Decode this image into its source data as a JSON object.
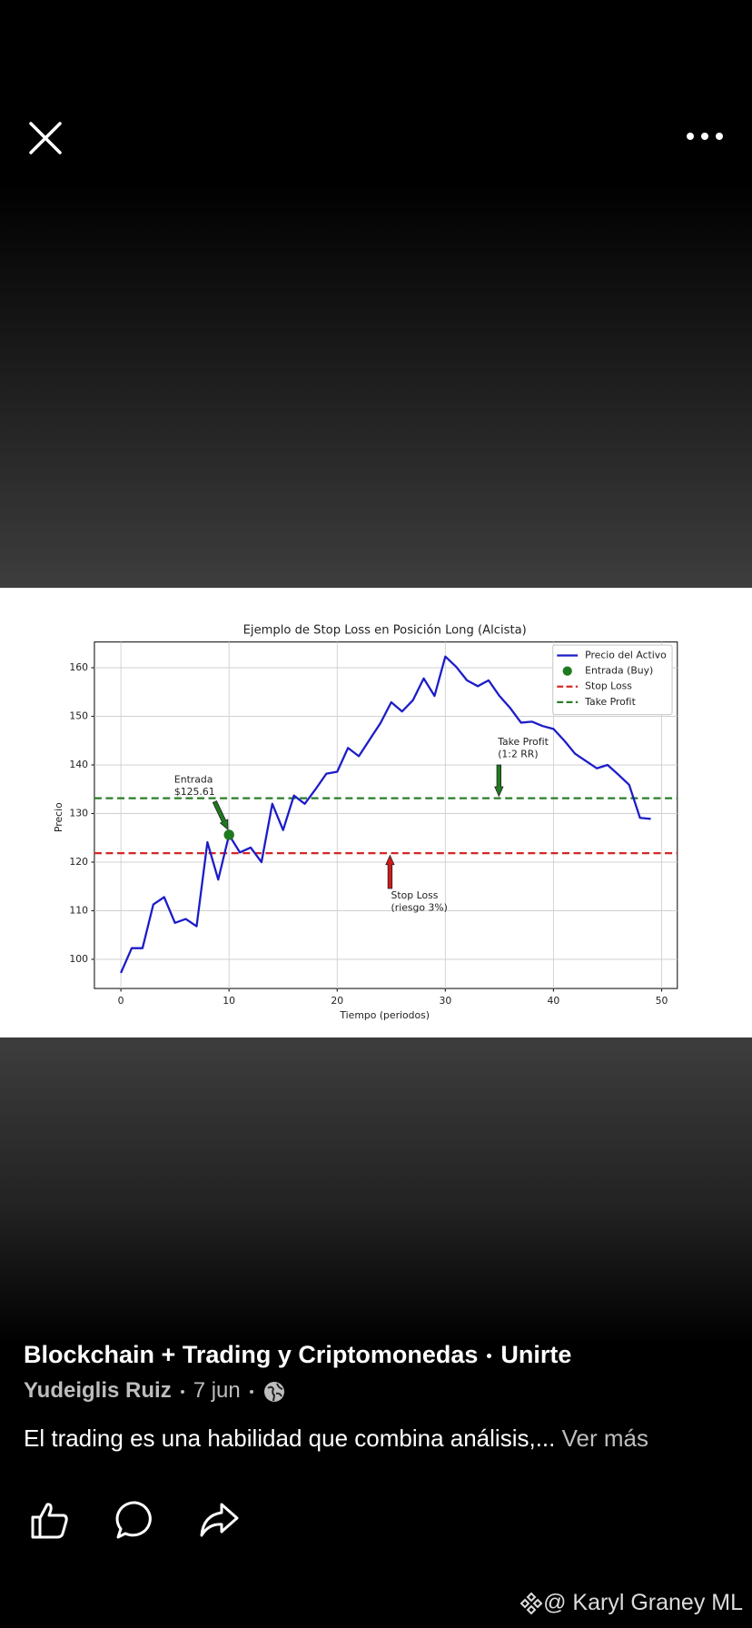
{
  "chart_data": {
    "type": "line",
    "title": "Ejemplo de Stop Loss en Posición Long (Alcista)",
    "x_label": "Tiempo (periodos)",
    "y_label": "Precio",
    "x": [
      0,
      1,
      2,
      3,
      4,
      5,
      6,
      7,
      8,
      9,
      10,
      11,
      12,
      13,
      14,
      15,
      16,
      17,
      18,
      19,
      20,
      21,
      22,
      23,
      24,
      25,
      26,
      27,
      28,
      29,
      30,
      31,
      32,
      33,
      34,
      35,
      36,
      37,
      38,
      39,
      40,
      41,
      42,
      43,
      44,
      45,
      46,
      47,
      48,
      49
    ],
    "series": [
      {
        "name": "Precio del Activo",
        "color": "#1c1cc8",
        "values": [
          97.2,
          102.3,
          102.3,
          111.3,
          112.8,
          107.5,
          108.3,
          106.8,
          124.1,
          116.4,
          125.61,
          122,
          123,
          120,
          132,
          126.6,
          133.7,
          132,
          135,
          138.2,
          138.6,
          143.5,
          141.8,
          145.2,
          148.6,
          152.9,
          151,
          153.3,
          157.8,
          154.2,
          162.3,
          160.2,
          157.4,
          156.2,
          157.4,
          154.2,
          151.7,
          148.7,
          148.9,
          148,
          147.4,
          145,
          142.3,
          140.8,
          139.3,
          140,
          138,
          135.9,
          129.1,
          128.9
        ]
      }
    ],
    "entry": {
      "name": "Entrada (Buy)",
      "color": "#1e7a1e",
      "x": 10,
      "y": 125.61
    },
    "hlines": [
      {
        "name": "Stop Loss",
        "color": "#d62728",
        "value": 121.84
      },
      {
        "name": "Take Profit",
        "color": "#2a7d2a",
        "value": 133.15
      }
    ],
    "annotations": [
      {
        "lines": [
          "Entrada",
          "$125.61"
        ],
        "color": "#222222",
        "arrow_color": "#1e7a1e"
      },
      {
        "lines": [
          "Stop Loss",
          "(riesgo 3%)"
        ],
        "color": "#d62728",
        "arrow_color": "#d11a1a"
      },
      {
        "lines": [
          "Take Profit",
          "(1:2 RR)"
        ],
        "color": "#2a7d2a",
        "arrow_color": "#1e7a1e"
      }
    ],
    "xlim": [
      -2.45,
      51.45
    ],
    "ylim": [
      94,
      165.3
    ],
    "xticks": [
      0,
      10,
      20,
      30,
      40,
      50
    ],
    "yticks": [
      100,
      110,
      120,
      130,
      140,
      150,
      160
    ],
    "grid": true,
    "legend": "upper right"
  },
  "post": {
    "group": "Blockchain + Trading y Criptomonedas",
    "join": "Unirte",
    "author": "Yudeiglis Ruiz",
    "date": "7 jun",
    "caption": "El trading es una habilidad que combina análisis,...",
    "more": "Ver más",
    "watermark": "@ Karyl Graney ML"
  }
}
